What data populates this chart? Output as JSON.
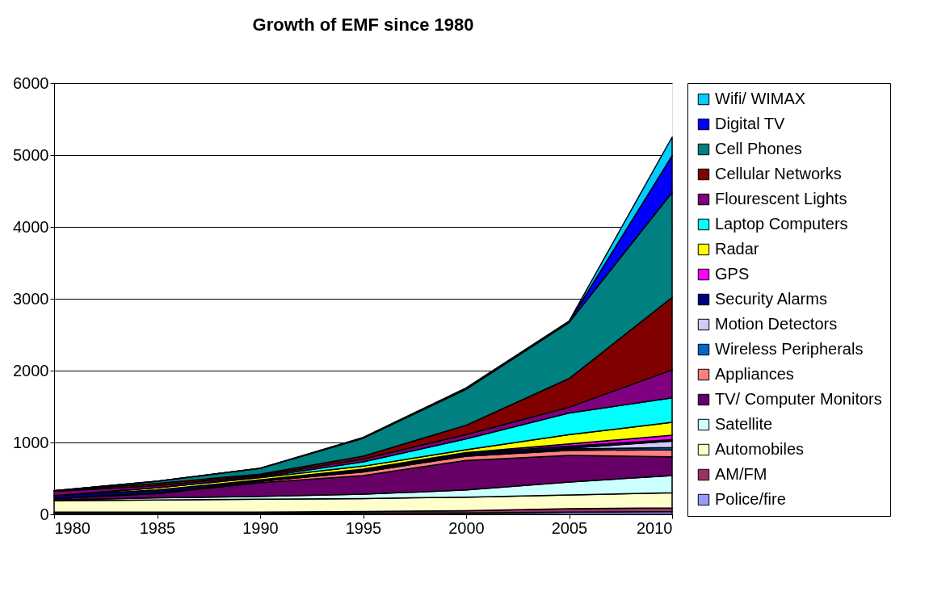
{
  "chart_data": {
    "type": "area",
    "title": "Growth of EMF since 1980",
    "stacked": true,
    "x": [
      1980,
      1985,
      1990,
      1995,
      2000,
      2005,
      2010
    ],
    "xlim": [
      1980,
      2010
    ],
    "xticks": [
      1980,
      1985,
      1990,
      1995,
      2000,
      2005,
      2010
    ],
    "ylim": [
      0,
      6000
    ],
    "yticks": [
      0,
      1000,
      2000,
      3000,
      4000,
      5000,
      6000
    ],
    "grid": "y",
    "legend": "right",
    "series": [
      {
        "name": "Police/fire",
        "color": "#9999ff",
        "values": [
          10,
          10,
          10,
          20,
          20,
          30,
          40
        ]
      },
      {
        "name": "AM/FM",
        "color": "#993366",
        "values": [
          20,
          20,
          20,
          20,
          30,
          50,
          50
        ]
      },
      {
        "name": "Automobiles",
        "color": "#ffffcc",
        "values": [
          160,
          170,
          180,
          180,
          190,
          190,
          210
        ]
      },
      {
        "name": "Satellite",
        "color": "#ccffff",
        "values": [
          10,
          30,
          40,
          60,
          100,
          180,
          240
        ]
      },
      {
        "name": "TV/ Computer Monitors",
        "color": "#660066",
        "values": [
          20,
          60,
          190,
          260,
          410,
          370,
          260
        ]
      },
      {
        "name": "Appliances",
        "color": "#ff8080",
        "values": [
          0,
          10,
          20,
          50,
          60,
          70,
          100
        ]
      },
      {
        "name": "Wireless Peripherals",
        "color": "#0066cc",
        "values": [
          0,
          0,
          0,
          10,
          10,
          20,
          30
        ]
      },
      {
        "name": "Motion Detectors",
        "color": "#ccccff",
        "values": [
          0,
          0,
          0,
          0,
          10,
          10,
          90
        ]
      },
      {
        "name": "Security Alarms",
        "color": "#000080",
        "values": [
          40,
          40,
          20,
          20,
          20,
          30,
          20
        ]
      },
      {
        "name": "GPS",
        "color": "#ff00ff",
        "values": [
          0,
          0,
          0,
          10,
          10,
          30,
          60
        ]
      },
      {
        "name": "Radar",
        "color": "#ffff00",
        "values": [
          0,
          30,
          30,
          40,
          40,
          130,
          180
        ]
      },
      {
        "name": "Laptop Computers",
        "color": "#00ffff",
        "values": [
          0,
          0,
          10,
          60,
          150,
          300,
          340
        ]
      },
      {
        "name": "Flourescent Lights",
        "color": "#800080",
        "values": [
          60,
          30,
          20,
          40,
          60,
          80,
          390
        ]
      },
      {
        "name": "Cellular Networks",
        "color": "#800000",
        "values": [
          10,
          30,
          20,
          40,
          130,
          400,
          1010
        ]
      },
      {
        "name": "Cell Phones",
        "color": "#008080",
        "values": [
          0,
          30,
          80,
          250,
          500,
          780,
          1460
        ]
      },
      {
        "name": "Digital TV",
        "color": "#0000ff",
        "values": [
          0,
          0,
          0,
          0,
          10,
          10,
          510
        ]
      },
      {
        "name": "Wifi/ WIMAX",
        "color": "#00ccff",
        "values": [
          0,
          0,
          0,
          10,
          10,
          10,
          260
        ]
      }
    ]
  }
}
